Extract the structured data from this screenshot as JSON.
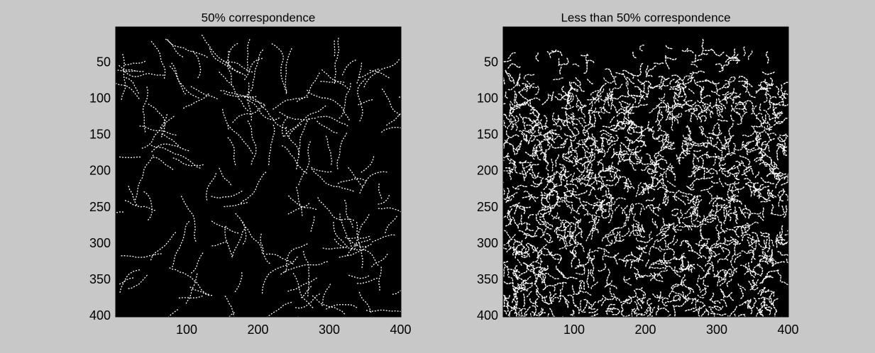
{
  "chart_data": [
    {
      "type": "image",
      "title": "50% correspondence",
      "xlim": [
        0.5,
        400.5
      ],
      "ylim": [
        0.5,
        400.5
      ],
      "reverse_y": true,
      "xticks": [
        100,
        200,
        300,
        400
      ],
      "yticks": [
        50,
        100,
        150,
        200,
        250,
        300,
        350,
        400
      ]
    },
    {
      "type": "image",
      "title": "Less than 50% correspondence",
      "xlim": [
        0.5,
        400.5
      ],
      "ylim": [
        0.5,
        400.5
      ],
      "reverse_y": true,
      "xticks": [
        100,
        200,
        300,
        400
      ],
      "yticks": [
        50,
        100,
        150,
        200,
        250,
        300,
        350,
        400
      ]
    }
  ]
}
